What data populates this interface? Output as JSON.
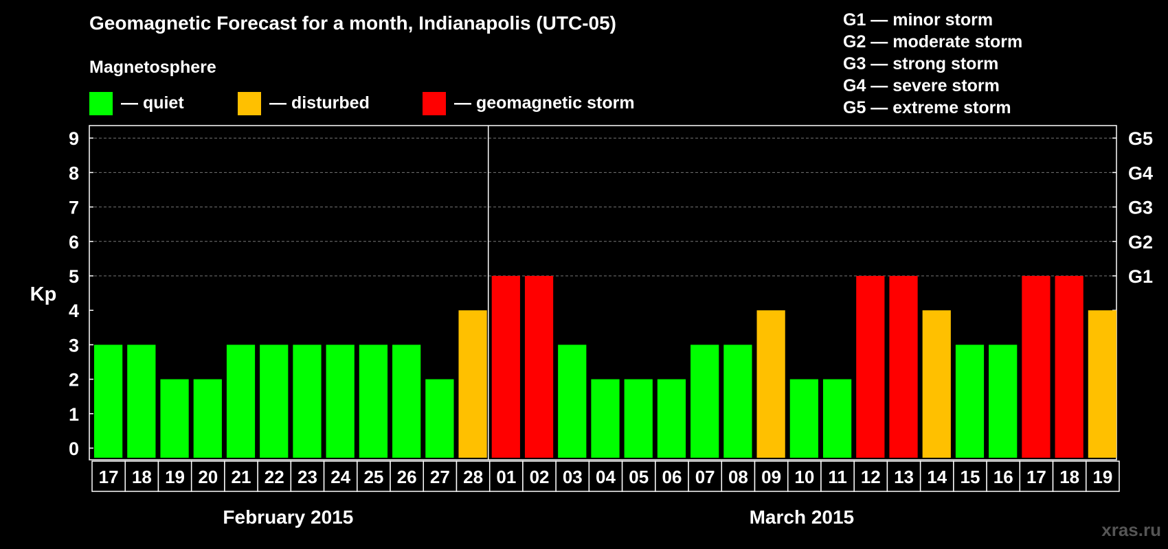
{
  "title": "Geomagnetic Forecast for a month, Indianapolis (UTC-05)",
  "legend": {
    "heading": "Magnetosphere",
    "items": [
      {
        "label": "— quiet",
        "color": "#00ff00"
      },
      {
        "label": "— disturbed",
        "color": "#ffc000"
      },
      {
        "label": "— geomagnetic storm",
        "color": "#ff0000"
      }
    ]
  },
  "storm_scale": [
    "G1 — minor storm",
    "G2 — moderate storm",
    "G3 — strong storm",
    "G4 — severe storm",
    "G5 — extreme storm"
  ],
  "watermark": "xras.ru",
  "chart_data": {
    "type": "bar",
    "ylabel": "Kp",
    "ylim": [
      0,
      9
    ],
    "yticks": [
      0,
      1,
      2,
      3,
      4,
      5,
      6,
      7,
      8,
      9
    ],
    "right_axis_labels": [
      {
        "value": 5,
        "label": "G1"
      },
      {
        "value": 6,
        "label": "G2"
      },
      {
        "value": 7,
        "label": "G3"
      },
      {
        "value": 8,
        "label": "G4"
      },
      {
        "value": 9,
        "label": "G5"
      }
    ],
    "grid": "dashed horizontal at Kp 5–9",
    "months": [
      {
        "label": "February 2015",
        "days": 12
      },
      {
        "label": "March 2015",
        "days": 19
      }
    ],
    "categories": [
      "17",
      "18",
      "19",
      "20",
      "21",
      "22",
      "23",
      "24",
      "25",
      "26",
      "27",
      "28",
      "01",
      "02",
      "03",
      "04",
      "05",
      "06",
      "07",
      "08",
      "09",
      "10",
      "11",
      "12",
      "13",
      "14",
      "15",
      "16",
      "17",
      "18",
      "19"
    ],
    "values": [
      3,
      3,
      2,
      2,
      3,
      3,
      3,
      3,
      3,
      3,
      2,
      4,
      5,
      5,
      3,
      2,
      2,
      2,
      3,
      3,
      4,
      2,
      2,
      5,
      5,
      4,
      3,
      3,
      5,
      5,
      4
    ],
    "color_by_value": {
      "quiet": "0-3",
      "disturbed": "4",
      "geomagnetic storm": "5+"
    }
  }
}
